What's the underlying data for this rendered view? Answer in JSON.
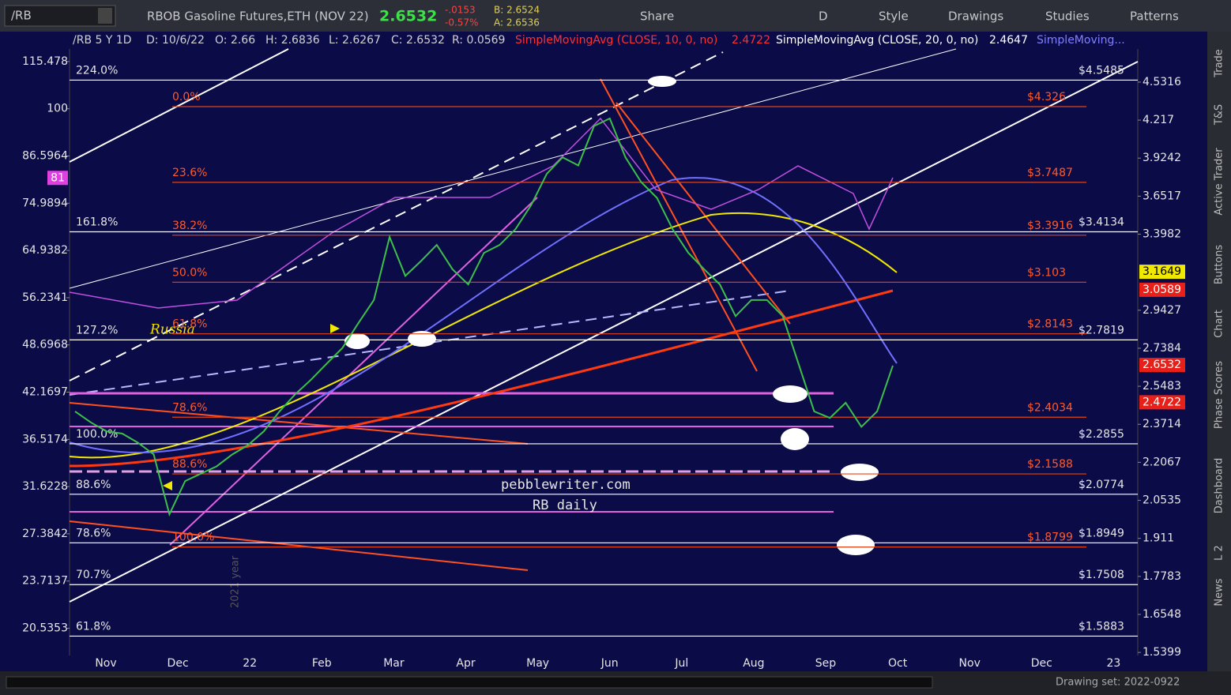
{
  "toolbar": {
    "symbol": "/RB",
    "description": "RBOB Gasoline Futures,ETH (NOV 22)",
    "last": "2.6532",
    "change": "-.0153",
    "change_pct": "-0.57%",
    "bid": "B: 2.6524",
    "ask": "A: 2.6536",
    "buttons": [
      "Share",
      "D",
      "Style",
      "Drawings",
      "Studies",
      "Patterns"
    ]
  },
  "header": {
    "items": [
      "/RB 5 Y 1D",
      "D: 10/6/22",
      "O: 2.66",
      "H: 2.6836",
      "L: 2.6267",
      "C: 2.6532",
      "R: 0.0569"
    ],
    "studies": [
      {
        "name": "SimpleMovingAvg (CLOSE, 10, 0, no)",
        "value": "2.4722"
      },
      {
        "name": "SimpleMovingAvg (CLOSE, 20, 0, no)",
        "value": "2.4647"
      },
      {
        "name": "SimpleMoving..."
      }
    ]
  },
  "side_tabs": [
    "Trade",
    "T&S",
    "Active Trader",
    "Buttons",
    "Chart",
    "Phase Scores",
    "Dashboard",
    "L 2",
    "News"
  ],
  "footer": {
    "drawing_set": "Drawing set: 2022-0922"
  },
  "chart_data": {
    "type": "line",
    "log_scale": true,
    "color": "#3cc04a",
    "values": [
      2.43,
      2.38,
      2.34,
      2.33,
      2.29,
      2.24,
      2.0,
      2.13,
      2.16,
      2.19,
      2.24,
      2.28,
      2.34,
      2.43,
      2.51,
      2.58,
      2.66,
      2.74,
      2.87,
      3.0,
      3.38,
      3.14,
      3.23,
      3.33,
      3.18,
      3.09,
      3.28,
      3.33,
      3.43,
      3.59,
      3.81,
      3.93,
      3.87,
      4.17,
      4.23,
      3.93,
      3.75,
      3.64,
      3.43,
      3.28,
      3.18,
      3.09,
      2.91,
      3.0,
      3.0,
      2.91,
      2.66,
      2.43,
      2.4,
      2.47,
      2.36,
      2.43,
      2.65
    ],
    "month_labels": [
      "Nov",
      "Dec",
      "22",
      "Feb",
      "Mar",
      "Apr",
      "May",
      "Jun",
      "Jul",
      "Aug",
      "Sep",
      "Oct",
      "Nov",
      "Dec",
      "23"
    ],
    "ylim": [
      1.531,
      4.986
    ],
    "yticks": [
      4.5316,
      4.217,
      3.9242,
      3.6517,
      3.3982,
      2.9427,
      2.7384,
      2.5483,
      2.3714,
      2.2067,
      2.0535,
      1.911,
      1.7783,
      1.6548,
      1.5399
    ],
    "y2lim": [
      18.9,
      126.5
    ],
    "y2ticks": [
      115.478,
      100,
      86.5964,
      74.9894,
      64.9382,
      56.2341,
      48.6968,
      42.1697,
      36.5174,
      31.6228,
      27.3842,
      23.7137,
      20.5353
    ],
    "rsi_marker": {
      "value": 81,
      "color": "#e040e0"
    },
    "price_boxes": [
      {
        "value": 3.1649,
        "color": "#f0e800"
      },
      {
        "value": 3.0589,
        "color": "#e8201a"
      },
      {
        "value": 2.6532,
        "color": "#e8201a"
      },
      {
        "value": 2.4722,
        "color": "#e8201a"
      }
    ],
    "levels": [
      {
        "label": "224.0%",
        "value": 4.5485,
        "value_label": "$4.5485"
      },
      {
        "label": "161.8%",
        "value": 3.4134,
        "value_label": "$3.4134"
      },
      {
        "label": "127.2%",
        "value": 2.7819,
        "value_label": "$2.7819"
      },
      {
        "label": "100.0%",
        "value": 2.2855,
        "value_label": "$2.2855"
      },
      {
        "label": "88.6%",
        "value": 2.0774,
        "value_label": "$2.0774"
      },
      {
        "label": "78.6%",
        "value": 1.8949,
        "value_label": "$1.8949"
      },
      {
        "label": "70.7%",
        "value": 1.7508,
        "value_label": "$1.7508"
      },
      {
        "label": "61.8%",
        "value": 1.5883,
        "value_label": "$1.5883"
      }
    ],
    "fib_levels": [
      {
        "label": "0.0%",
        "value": 4.326,
        "value_label": "$4.326"
      },
      {
        "label": "23.6%",
        "value": 3.7487,
        "value_label": "$3.7487"
      },
      {
        "label": "38.2%",
        "value": 3.3916,
        "value_label": "$3.3916"
      },
      {
        "label": "50.0%",
        "value": 3.103,
        "value_label": "$3.103"
      },
      {
        "label": "61.8%",
        "value": 2.8143,
        "value_label": "$2.8143"
      },
      {
        "label": "78.6%",
        "value": 2.4034,
        "value_label": "$2.4034"
      },
      {
        "label": "88.6%",
        "value": 2.1588,
        "value_label": "$2.1588"
      },
      {
        "label": "100.0%",
        "value": 1.8799,
        "value_label": "$1.8799"
      }
    ],
    "annotations": [
      "Russia",
      "pebblewriter.com",
      "RB daily",
      "2021 year"
    ]
  }
}
